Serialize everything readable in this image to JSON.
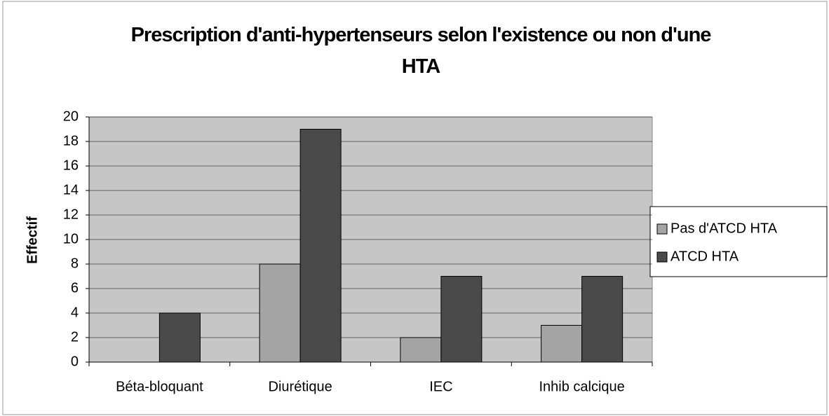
{
  "chart_data": {
    "type": "bar",
    "title": "Prescription d'anti-hypertenseurs selon l'existence ou non d'une HTA",
    "y_label": "Effectif",
    "categories": [
      "Béta-bloquant",
      "Diurétique",
      "IEC",
      "Inhib calcique"
    ],
    "series": [
      {
        "name": "Pas d'ATCD HTA",
        "color": "#a4a4a4",
        "values": [
          0,
          8,
          2,
          3
        ]
      },
      {
        "name": "ATCD HTA",
        "color": "#4a4a4a",
        "values": [
          4,
          19,
          7,
          7
        ]
      }
    ],
    "ylim": [
      0,
      20
    ],
    "yticks": [
      0,
      2,
      4,
      6,
      8,
      10,
      12,
      14,
      16,
      18,
      20
    ],
    "grid": true,
    "legend": "right"
  }
}
